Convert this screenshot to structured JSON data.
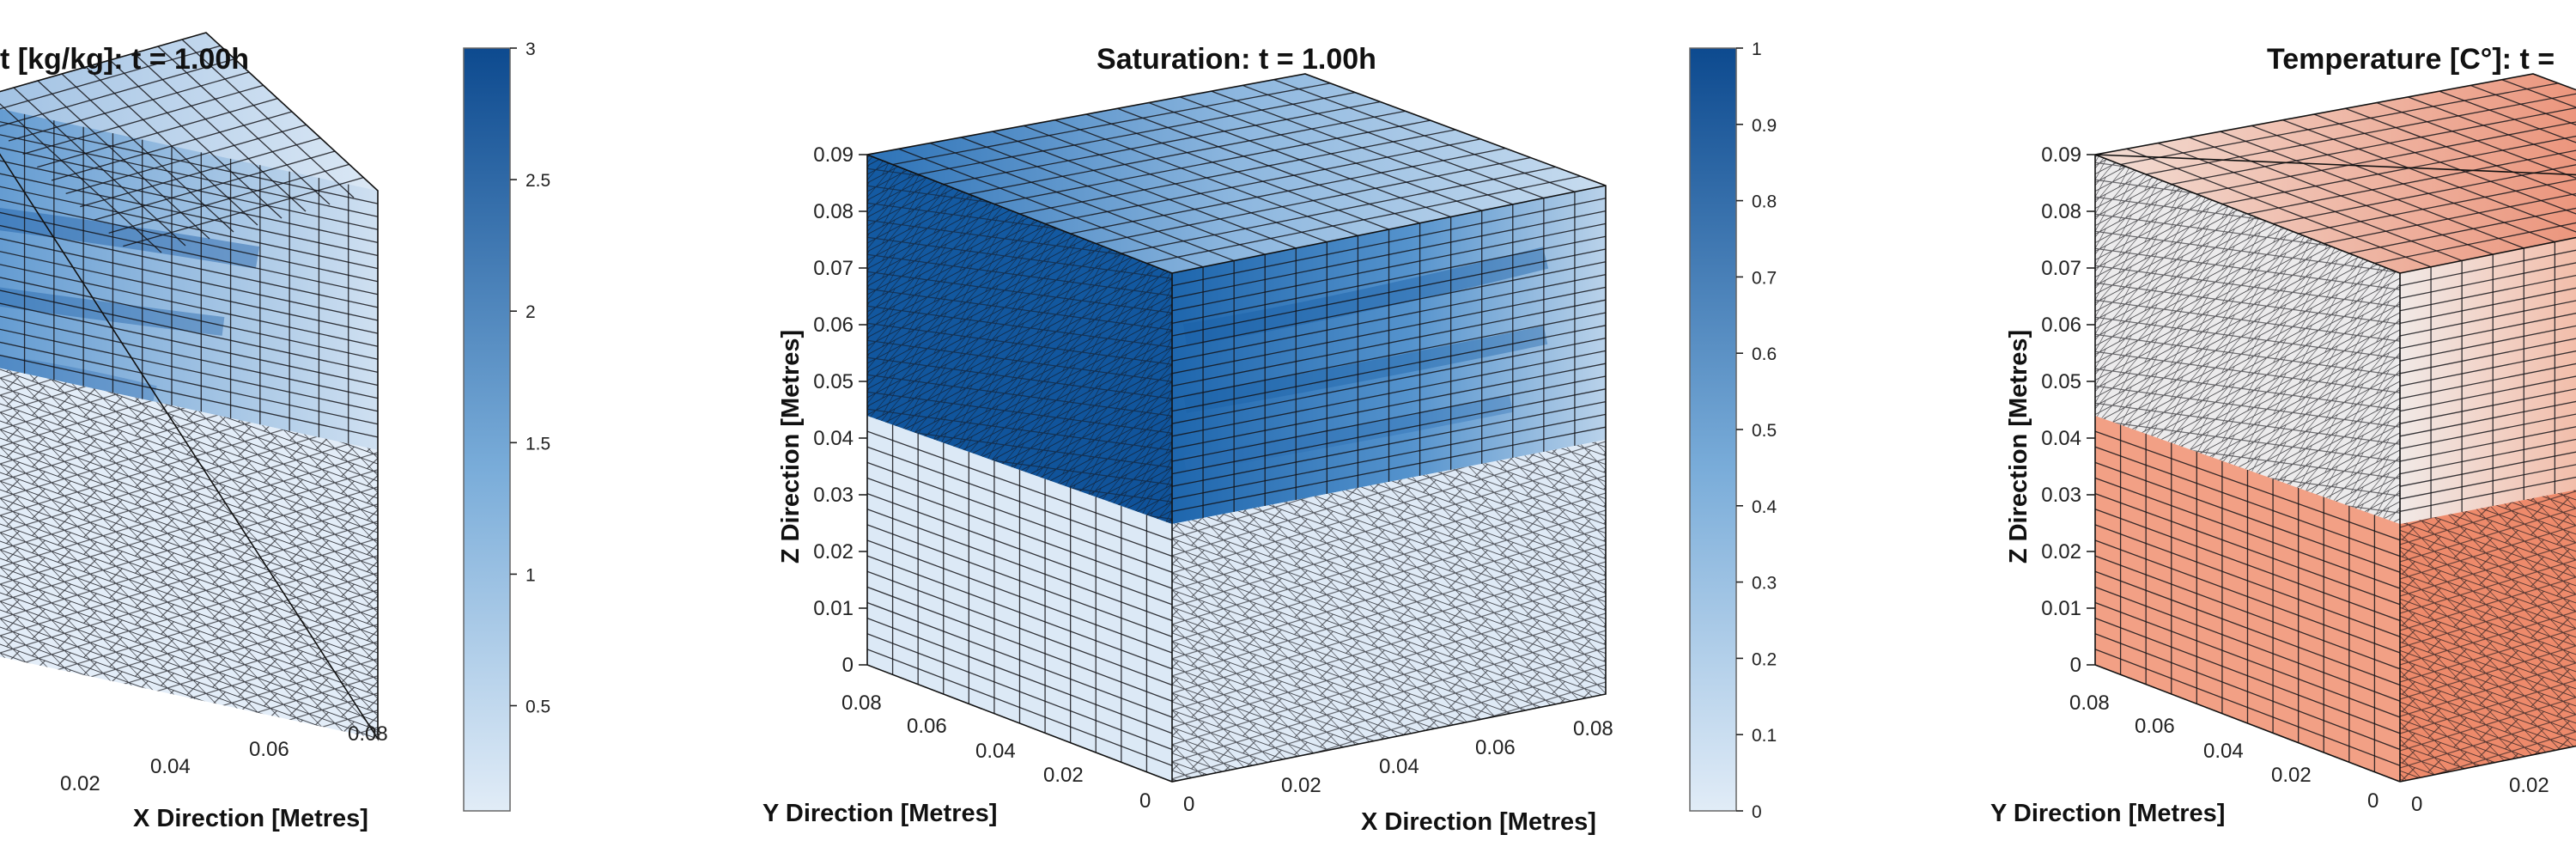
{
  "panels": [
    {
      "title": "t [kg/kg]: t = 1.00h",
      "scheme": "blue",
      "z_ticks": [],
      "y_ticks": [],
      "y_zero": "",
      "x_ticks": [
        "0.02",
        "0.04",
        "0.06",
        "0.08"
      ],
      "xlabel": "X Direction [Metres]",
      "ylabel": "",
      "zlabel": "",
      "colorbar": {
        "min": 0.1,
        "max": 3,
        "ticks": [
          "3",
          "2.5",
          "2",
          "1.5",
          "1",
          "0.5"
        ],
        "tick_values": [
          3,
          2.5,
          2,
          1.5,
          1,
          0.5
        ]
      }
    },
    {
      "title": "Saturation: t = 1.00h",
      "scheme": "blue",
      "z_ticks": [
        "0.09",
        "0.08",
        "0.07",
        "0.06",
        "0.05",
        "0.04",
        "0.03",
        "0.02",
        "0.01",
        "0"
      ],
      "y_ticks": [
        "0.08",
        "0.06",
        "0.04",
        "0.02"
      ],
      "y_zero": "0",
      "x_ticks": [
        "0",
        "0.02",
        "0.04",
        "0.06",
        "0.08"
      ],
      "xlabel": "X Direction [Metres]",
      "ylabel": "Y Direction [Metres]",
      "zlabel": "Z Direction [Metres]",
      "colorbar": {
        "min": 0,
        "max": 1,
        "ticks": [
          "1",
          "0.9",
          "0.8",
          "0.7",
          "0.6",
          "0.5",
          "0.4",
          "0.3",
          "0.2",
          "0.1",
          "0"
        ],
        "tick_values": [
          1,
          0.9,
          0.8,
          0.7,
          0.6,
          0.5,
          0.4,
          0.3,
          0.2,
          0.1,
          0
        ]
      }
    },
    {
      "title": "Temperature [C°]: t =",
      "scheme": "red",
      "z_ticks": [
        "0.09",
        "0.08",
        "0.07",
        "0.06",
        "0.05",
        "0.04",
        "0.03",
        "0.02",
        "0.01",
        "0"
      ],
      "y_ticks": [
        "0.08",
        "0.06",
        "0.04",
        "0.02"
      ],
      "y_zero": "0",
      "x_ticks": [
        "0",
        "0.02"
      ],
      "xlabel": "",
      "ylabel": "Y Direction [Metres]",
      "zlabel": "Z Direction [Metres]",
      "colorbar": null
    }
  ],
  "colors": {
    "blue_light": "#e1ecf7",
    "blue_mid": "#4f8fc8",
    "blue_dark": "#0d4a8f",
    "red_light": "#f3ece9",
    "red_mid": "#f4a082",
    "red_dark": "#e8704f"
  }
}
